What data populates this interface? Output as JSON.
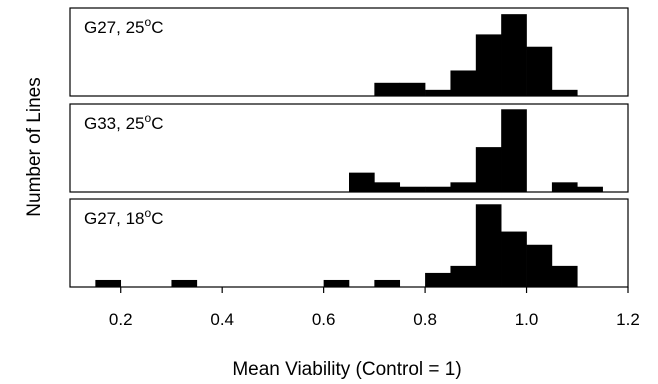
{
  "chart_data": {
    "type": "bar",
    "xlabel": "Mean Viability (Control = 1)",
    "ylabel": "Number of Lines",
    "xlim": [
      0.1,
      1.2
    ],
    "xticks": [
      0.2,
      0.4,
      0.6,
      0.8,
      1.0,
      1.2
    ],
    "xtick_labels": [
      "0.2",
      "0.4",
      "0.6",
      "0.8",
      "1.0",
      "1.2"
    ],
    "bin_width": 0.05,
    "panels": [
      {
        "label": "G27, 25°C",
        "bins": [
          {
            "x0": 0.7,
            "h": 0.15
          },
          {
            "x0": 0.75,
            "h": 0.15
          },
          {
            "x0": 0.8,
            "h": 0.07
          },
          {
            "x0": 0.85,
            "h": 0.29
          },
          {
            "x0": 0.9,
            "h": 0.7
          },
          {
            "x0": 0.95,
            "h": 0.93
          },
          {
            "x0": 1.0,
            "h": 0.56
          },
          {
            "x0": 1.05,
            "h": 0.07
          }
        ]
      },
      {
        "label": "G33, 25°C",
        "bins": [
          {
            "x0": 0.65,
            "h": 0.22
          },
          {
            "x0": 0.7,
            "h": 0.11
          },
          {
            "x0": 0.75,
            "h": 0.06
          },
          {
            "x0": 0.8,
            "h": 0.06
          },
          {
            "x0": 0.85,
            "h": 0.11
          },
          {
            "x0": 0.9,
            "h": 0.51
          },
          {
            "x0": 0.95,
            "h": 0.94
          },
          {
            "x0": 1.0,
            "h": 0.0
          },
          {
            "x0": 1.05,
            "h": 0.11
          },
          {
            "x0": 1.1,
            "h": 0.06
          }
        ]
      },
      {
        "label": "G27, 18°C",
        "bins": [
          {
            "x0": 0.15,
            "h": 0.08
          },
          {
            "x0": 0.3,
            "h": 0.08
          },
          {
            "x0": 0.6,
            "h": 0.08
          },
          {
            "x0": 0.7,
            "h": 0.08
          },
          {
            "x0": 0.8,
            "h": 0.16
          },
          {
            "x0": 0.85,
            "h": 0.24
          },
          {
            "x0": 0.9,
            "h": 0.94
          },
          {
            "x0": 0.95,
            "h": 0.63
          },
          {
            "x0": 1.0,
            "h": 0.48
          },
          {
            "x0": 1.05,
            "h": 0.24
          }
        ]
      }
    ]
  }
}
